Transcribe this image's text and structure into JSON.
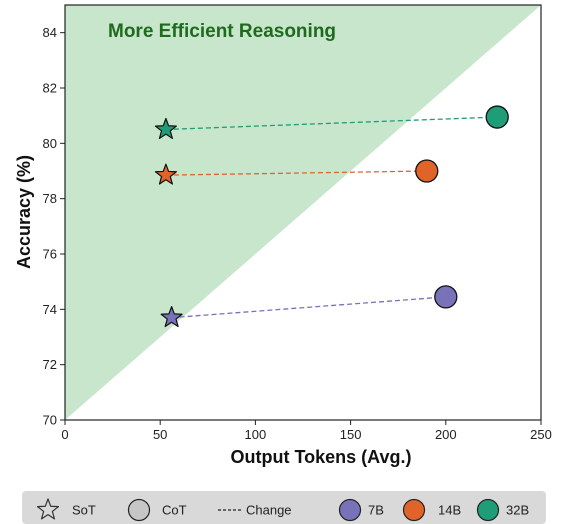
{
  "chart_data": {
    "type": "scatter",
    "title": "",
    "xlabel": "Output Tokens (Avg.)",
    "ylabel": "Accuracy (%)",
    "xlim": [
      0,
      250
    ],
    "ylim": [
      70,
      85
    ],
    "xticks": [
      0,
      50,
      100,
      150,
      200,
      250
    ],
    "yticks": [
      70,
      72,
      74,
      76,
      78,
      80,
      82,
      84
    ],
    "grid": false,
    "annotation": "More Efficient Reasoning",
    "region": {
      "from": [
        0,
        70
      ],
      "to": [
        250,
        85
      ],
      "fill": "#c8e6cc",
      "label_color": "#1e6b1e"
    },
    "series": [
      {
        "name": "7B",
        "color": "#7873b8",
        "sot": {
          "x": 56,
          "y": 73.7
        },
        "cot": {
          "x": 200,
          "y": 74.45
        }
      },
      {
        "name": "14B",
        "color": "#e0632a",
        "sot": {
          "x": 53,
          "y": 78.85
        },
        "cot": {
          "x": 190,
          "y": 79.0
        }
      },
      {
        "name": "32B",
        "color": "#1f9c78",
        "sot": {
          "x": 53,
          "y": 80.5
        },
        "cot": {
          "x": 227,
          "y": 80.95
        }
      }
    ]
  },
  "legend": {
    "position": "bottom",
    "items": [
      {
        "label": "SoT",
        "marker": "star"
      },
      {
        "label": "CoT",
        "marker": "circle"
      },
      {
        "label": "Change",
        "marker": "dashed-line"
      },
      {
        "label": "7B",
        "marker": "circle",
        "color": "#7873b8"
      },
      {
        "label": "14B",
        "marker": "circle",
        "color": "#e0632a"
      },
      {
        "label": "32B",
        "marker": "circle",
        "color": "#1f9c78"
      }
    ]
  }
}
